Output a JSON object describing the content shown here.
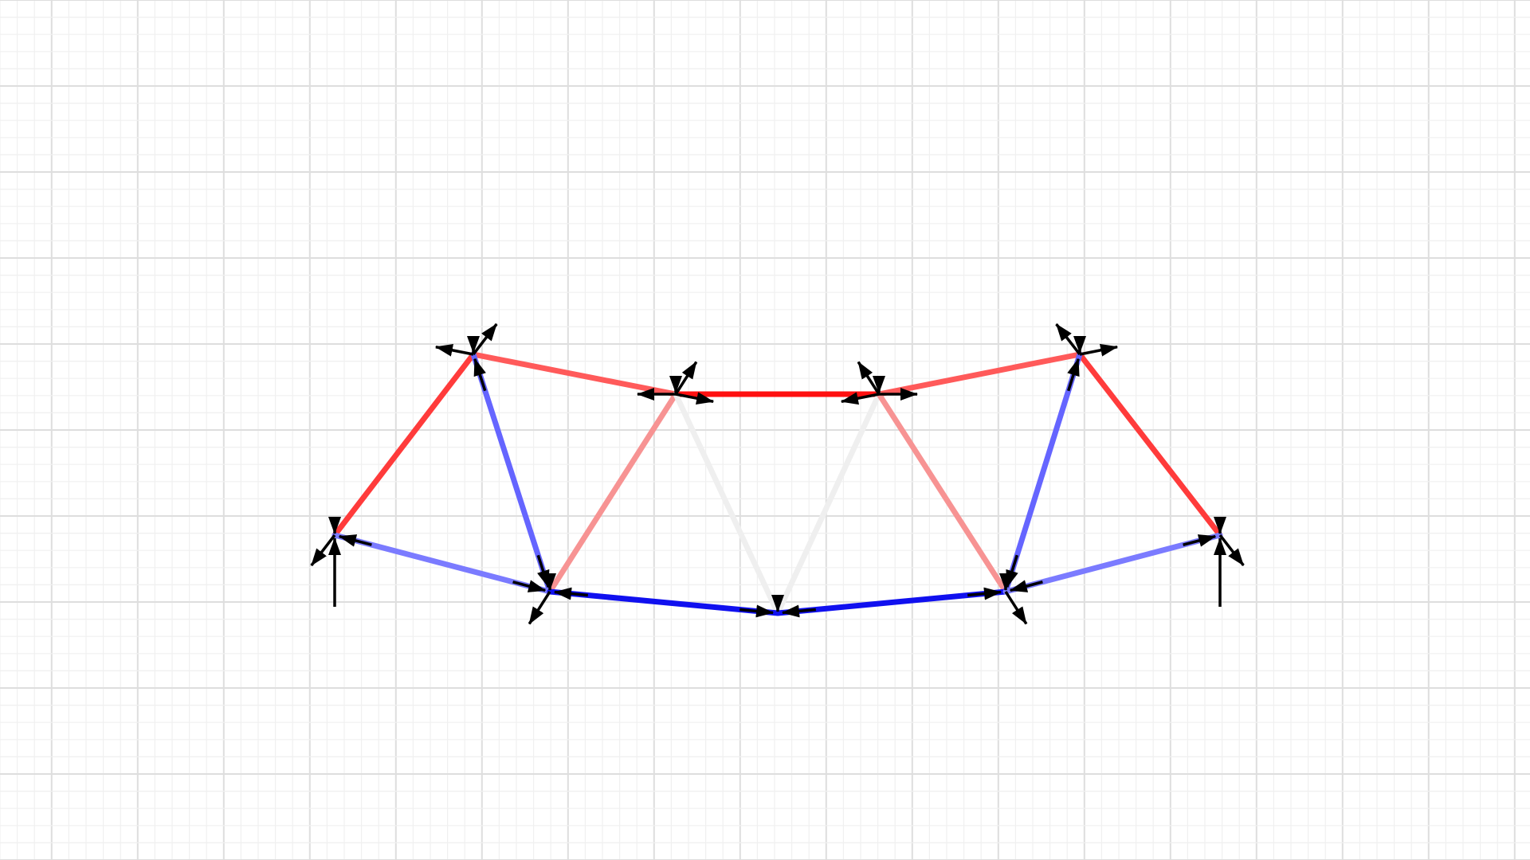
{
  "diagram": {
    "type": "truss-force-diagram",
    "grid": {
      "visible": true,
      "background": "#ffffff",
      "minor_color": "#f0f0f0",
      "major_color": "#dedede"
    },
    "force_colors": {
      "strong_tension": "#ff1010",
      "tension": "#ff3b3b",
      "light_tension": "#ff5a5a",
      "weak_tension": "#f79393",
      "zero": "#efefef",
      "weak_compression": "#7b7bff",
      "compression": "#6565ff",
      "strong_compression": "#1010ef"
    },
    "arrow_color": "#000000",
    "nodes": [
      {
        "id": "left-support"
      },
      {
        "id": "top-left"
      },
      {
        "id": "top-center-left"
      },
      {
        "id": "top-center-right"
      },
      {
        "id": "top-right"
      },
      {
        "id": "right-support"
      },
      {
        "id": "bottom-left"
      },
      {
        "id": "bottom-center"
      },
      {
        "id": "bottom-right"
      }
    ],
    "members": [
      {
        "from": "left-support",
        "to": "top-left",
        "force": "tension"
      },
      {
        "from": "top-left",
        "to": "top-center-left",
        "force": "light_tension"
      },
      {
        "from": "top-center-left",
        "to": "top-center-right",
        "force": "strong_tension"
      },
      {
        "from": "top-center-right",
        "to": "top-right",
        "force": "light_tension"
      },
      {
        "from": "top-right",
        "to": "right-support",
        "force": "tension"
      },
      {
        "from": "top-left",
        "to": "bottom-left",
        "force": "compression"
      },
      {
        "from": "top-center-left",
        "to": "bottom-left",
        "force": "weak_tension"
      },
      {
        "from": "top-center-left",
        "to": "bottom-center",
        "force": "zero"
      },
      {
        "from": "top-center-right",
        "to": "bottom-center",
        "force": "zero"
      },
      {
        "from": "top-center-right",
        "to": "bottom-right",
        "force": "weak_tension"
      },
      {
        "from": "top-right",
        "to": "bottom-right",
        "force": "compression"
      },
      {
        "from": "left-support",
        "to": "bottom-left",
        "force": "weak_compression"
      },
      {
        "from": "bottom-left",
        "to": "bottom-center",
        "force": "strong_compression"
      },
      {
        "from": "bottom-center",
        "to": "bottom-right",
        "force": "strong_compression"
      },
      {
        "from": "bottom-right",
        "to": "right-support",
        "force": "weak_compression"
      }
    ],
    "supports": [
      {
        "node": "left-support",
        "reaction": "vertical-up"
      },
      {
        "node": "right-support",
        "reaction": "vertical-up"
      }
    ]
  }
}
